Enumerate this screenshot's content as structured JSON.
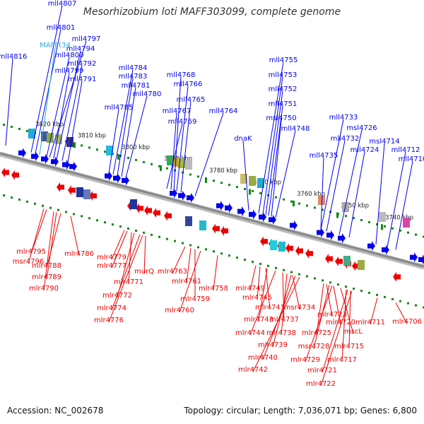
{
  "title": "Mesorhizobium loti MAFF303099, complete genome",
  "footer": {
    "accession": "Accession: NC_002678",
    "stats": "Topology: circular; Length: 7,036,071 bp; Genes: 6,800"
  },
  "colors": {
    "forward": "#0000ee",
    "reverse": "#ee0000",
    "rna": "#22aadd",
    "backbone": "#888888",
    "ticks": "#118811"
  },
  "scale_labels": [
    "3820 kbp",
    "3810 kbp",
    "3800 kbp",
    "3790 kbp",
    "3780 kbp",
    "3770 kbp",
    "3760 kbp",
    "3750 kbp",
    "3740 kbp"
  ],
  "forward_labels": [
    "mll4807",
    "mll4801",
    "MAFFt34",
    "mll4797",
    "mll4794",
    "mll4800",
    "mll4792",
    "mll4799",
    "mll4791",
    "mll4816",
    "mll4784",
    "mll4783",
    "mll4781",
    "mll4780",
    "mll4785",
    "mll4768",
    "mll4766",
    "mll4765",
    "mll4767",
    "mll4764",
    "mll4769",
    "mll4755",
    "mll4753",
    "mll4752",
    "mll4751",
    "msl4750",
    "mll4748",
    "dnaK",
    "mll4733",
    "msl4726",
    "mll4732",
    "mll4724",
    "mll4735",
    "msl4714",
    "mll4712",
    "mll4710"
  ],
  "reverse_labels": [
    "mlr4795",
    "msr4796",
    "mlr4788",
    "mlr4786",
    "mlr4789",
    "mlr4790",
    "mlr4779",
    "mlr4777",
    "murQ",
    "mlr4771",
    "mlr4772",
    "mlr4774",
    "mlr4776",
    "mlr4763",
    "mlr4761",
    "mlr4759",
    "mlr4758",
    "mlr4760",
    "mlr4749",
    "mlr4745",
    "mlr4741",
    "msr4734",
    "mlr4743",
    "mlr4737",
    "mlr4744",
    "mlr4738",
    "mlr4739",
    "mlr4740",
    "mlr4742",
    "mlr4723",
    "mlr4720",
    "mlr4725",
    "mscL",
    "mlr4711",
    "mlr4706",
    "msr4728",
    "mlr4715",
    "mlr4729",
    "mlr4717",
    "mlr4721",
    "mlr4722"
  ]
}
